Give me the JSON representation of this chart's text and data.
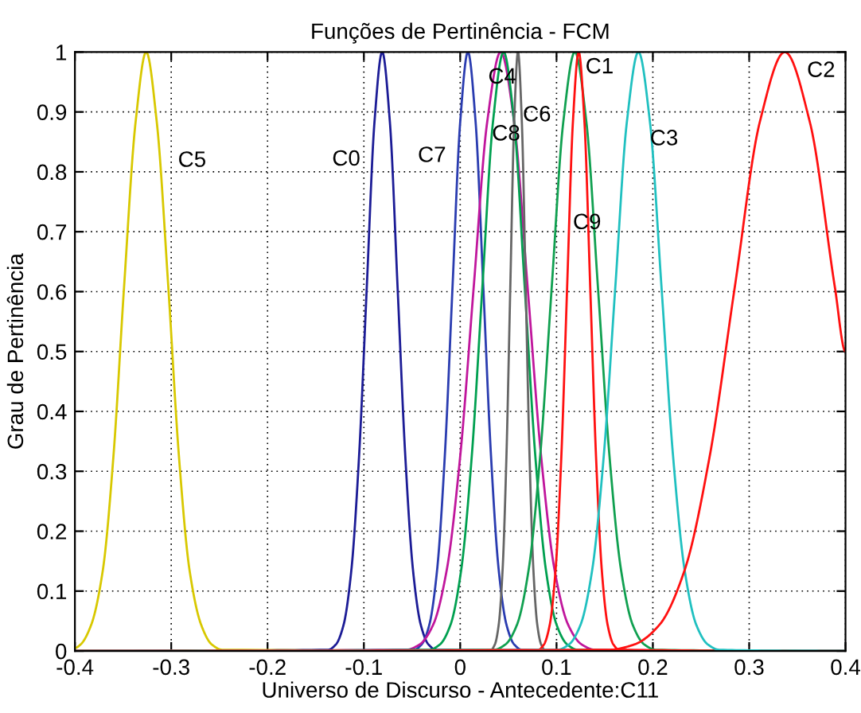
{
  "chart_data": {
    "type": "line",
    "title": "Funções de Pertinência - FCM",
    "xlabel": "Universo de Discurso - Antecedente:C11",
    "ylabel": "Grau de Pertinência",
    "xlim": [
      -0.4,
      0.4
    ],
    "ylim": [
      0,
      1
    ],
    "xticks": [
      -0.4,
      -0.3,
      -0.2,
      -0.1,
      0,
      0.1,
      0.2,
      0.3,
      0.4
    ],
    "yticks": [
      0,
      0.1,
      0.2,
      0.3,
      0.4,
      0.5,
      0.6,
      0.7,
      0.8,
      0.9,
      1
    ],
    "grid": true,
    "line_style": "solid",
    "marker": "none",
    "legend": false,
    "series": [
      {
        "name": "C5",
        "color": "#d8c800",
        "x": [
          -0.4,
          -0.394,
          -0.383,
          -0.371,
          -0.36,
          -0.349,
          -0.337,
          -0.326,
          -0.315,
          -0.303,
          -0.292,
          -0.281,
          -0.269,
          -0.258,
          -0.247,
          0.4
        ],
        "values": [
          0.005,
          0.011,
          0.044,
          0.135,
          0.325,
          0.607,
          0.883,
          1,
          0.883,
          0.607,
          0.325,
          0.135,
          0.044,
          0.011,
          0.002,
          0
        ]
      },
      {
        "name": "C0",
        "color": "#1c1c96",
        "x": [
          -0.4,
          -0.137,
          -0.129,
          -0.121,
          -0.113,
          -0.105,
          -0.097,
          -0.089,
          -0.081,
          -0.073,
          -0.065,
          -0.057,
          -0.049,
          -0.041,
          -0.033,
          -0.025,
          0.4
        ],
        "values": [
          0,
          0.002,
          0.011,
          0.044,
          0.135,
          0.325,
          0.607,
          0.883,
          1,
          0.883,
          0.607,
          0.325,
          0.135,
          0.044,
          0.011,
          0.002,
          0
        ]
      },
      {
        "name": "C7",
        "color": "#2a3cb0",
        "x": [
          -0.4,
          -0.048,
          -0.04,
          -0.032,
          -0.024,
          -0.016,
          -0.008,
          0.0,
          0.008,
          0.016,
          0.024,
          0.032,
          0.04,
          0.048,
          0.056,
          0.064,
          0.4
        ],
        "values": [
          0,
          0.002,
          0.011,
          0.044,
          0.135,
          0.325,
          0.607,
          0.883,
          1,
          0.883,
          0.607,
          0.325,
          0.135,
          0.044,
          0.011,
          0.002,
          0
        ]
      },
      {
        "name": "C8",
        "color": "#c0169c",
        "x": [
          -0.4,
          -0.056,
          -0.042,
          -0.028,
          -0.014,
          0.0,
          0.014,
          0.028,
          0.042,
          0.056,
          0.07,
          0.084,
          0.098,
          0.112,
          0.126,
          0.14,
          0.4
        ],
        "values": [
          0,
          0.002,
          0.011,
          0.044,
          0.135,
          0.325,
          0.607,
          0.883,
          1,
          0.883,
          0.607,
          0.325,
          0.135,
          0.044,
          0.011,
          0.002,
          0
        ]
      },
      {
        "name": "C4",
        "color": "#00a050",
        "x": [
          -0.4,
          -0.032,
          -0.021,
          -0.01,
          0.001,
          0.012,
          0.023,
          0.034,
          0.045,
          0.056,
          0.067,
          0.078,
          0.089,
          0.1,
          0.111,
          0.122,
          0.4
        ],
        "values": [
          0,
          0.002,
          0.011,
          0.044,
          0.135,
          0.325,
          0.607,
          0.883,
          1,
          0.883,
          0.607,
          0.325,
          0.135,
          0.044,
          0.011,
          0.002,
          0
        ]
      },
      {
        "name": "C6",
        "color": "#666666",
        "x": [
          -0.4,
          0.032,
          0.036,
          0.04,
          0.044,
          0.048,
          0.052,
          0.056,
          0.06,
          0.064,
          0.068,
          0.072,
          0.076,
          0.08,
          0.084,
          0.088,
          0.4
        ],
        "values": [
          0,
          0.002,
          0.011,
          0.044,
          0.135,
          0.325,
          0.607,
          0.883,
          1,
          0.883,
          0.607,
          0.325,
          0.135,
          0.044,
          0.011,
          0.002,
          0
        ]
      },
      {
        "name": "C1",
        "color": "#10a050",
        "x": [
          -0.4,
          0.035,
          0.047,
          0.059,
          0.071,
          0.083,
          0.095,
          0.107,
          0.119,
          0.131,
          0.143,
          0.155,
          0.167,
          0.179,
          0.191,
          0.203,
          0.4
        ],
        "values": [
          0,
          0.002,
          0.011,
          0.044,
          0.135,
          0.325,
          0.607,
          0.883,
          1,
          0.883,
          0.607,
          0.325,
          0.135,
          0.044,
          0.011,
          0.002,
          0
        ]
      },
      {
        "name": "C9",
        "color": "#ff1010",
        "x": [
          -0.4,
          0.081,
          0.087,
          0.093,
          0.099,
          0.105,
          0.111,
          0.117,
          0.123,
          0.129,
          0.135,
          0.141,
          0.147,
          0.153,
          0.159,
          0.165,
          0.4
        ],
        "values": [
          0,
          0.002,
          0.011,
          0.044,
          0.135,
          0.325,
          0.607,
          0.883,
          1,
          0.883,
          0.607,
          0.325,
          0.135,
          0.044,
          0.011,
          0.002,
          0
        ]
      },
      {
        "name": "C3",
        "color": "#20c0c0",
        "x": [
          -0.4,
          0.101,
          0.113,
          0.125,
          0.137,
          0.149,
          0.161,
          0.173,
          0.185,
          0.197,
          0.209,
          0.221,
          0.233,
          0.245,
          0.257,
          0.269,
          0.4
        ],
        "values": [
          0,
          0.002,
          0.011,
          0.044,
          0.135,
          0.325,
          0.607,
          0.883,
          1,
          0.883,
          0.607,
          0.325,
          0.135,
          0.044,
          0.011,
          0.002,
          0
        ]
      },
      {
        "name": "C2",
        "color": "#ff1010",
        "x": [
          -0.4,
          0.155,
          0.181,
          0.207,
          0.233,
          0.259,
          0.285,
          0.311,
          0.337,
          0.363,
          0.389,
          0.4
        ],
        "values": [
          0,
          0.002,
          0.011,
          0.044,
          0.135,
          0.325,
          0.607,
          0.883,
          1,
          0.883,
          0.607,
          0.5
        ]
      }
    ]
  }
}
